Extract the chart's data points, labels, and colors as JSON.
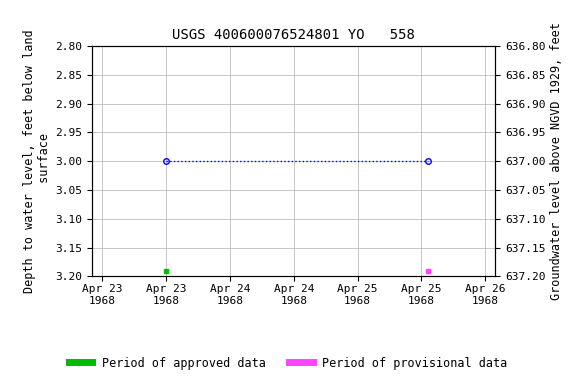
{
  "title": "USGS 400600076524801 YO   558",
  "ylabel_left": "Depth to water level, feet below land\n surface",
  "ylabel_right": "Groundwater level above NGVD 1929, feet",
  "ylim_left": [
    2.8,
    3.2
  ],
  "ylim_right": [
    637.2,
    636.8
  ],
  "y_ticks_left": [
    2.8,
    2.85,
    2.9,
    2.95,
    3.0,
    3.05,
    3.1,
    3.15,
    3.2
  ],
  "y_ticks_right": [
    637.2,
    637.15,
    637.1,
    637.05,
    637.0,
    636.95,
    636.9,
    636.85,
    636.8
  ],
  "x_tick_labels": [
    "Apr 23\n1968",
    "Apr 23\n1968",
    "Apr 24\n1968",
    "Apr 24\n1968",
    "Apr 25\n1968",
    "Apr 25\n1968",
    "Apr 26\n1968"
  ],
  "x_tick_positions_days": [
    0.0,
    0.5,
    1.0,
    1.5,
    2.0,
    2.5,
    3.0
  ],
  "approved_data": [
    {
      "x_days": 0.5,
      "y": 3.19
    }
  ],
  "provisional_data": [
    {
      "x_days": 2.55,
      "y": 3.19
    }
  ],
  "line_x": [
    0.5,
    2.55
  ],
  "line_y": [
    3.0,
    3.0
  ],
  "line_color": "#0000FF",
  "marker_color": "#0000FF",
  "approved_color": "#00BB00",
  "provisional_color": "#FF44FF",
  "background_color": "#ffffff",
  "grid_color": "#b0b0b0",
  "title_fontsize": 10,
  "axis_label_fontsize": 8.5,
  "tick_fontsize": 8,
  "legend_fontsize": 8.5,
  "xlim": [
    -0.08,
    3.08
  ]
}
